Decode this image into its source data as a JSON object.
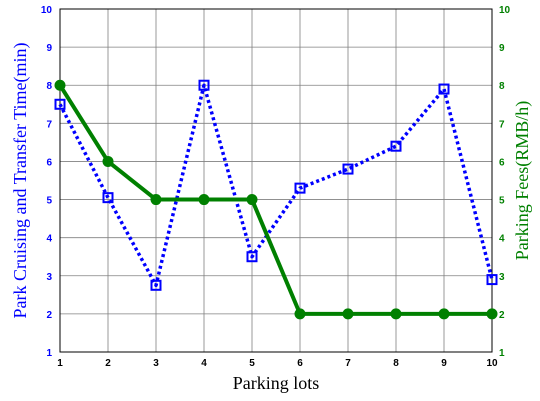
{
  "chart_data": {
    "type": "line",
    "xlabel": "Parking lots",
    "ylabel_left": "Park Cruising and Transfer Time(min)",
    "ylabel_right": "Parking Fees(RMB/h)",
    "x": [
      1,
      2,
      3,
      4,
      5,
      6,
      7,
      8,
      9,
      10
    ],
    "xlim": [
      1,
      10
    ],
    "ylim_left": [
      1,
      10
    ],
    "ylim_right": [
      1,
      10
    ],
    "grid": true,
    "series": [
      {
        "axis": "left",
        "color": "#0000ff",
        "line_style": "dotted",
        "marker": "square",
        "values": [
          7.5,
          5.05,
          2.75,
          8.0,
          3.5,
          5.3,
          5.8,
          6.4,
          7.9,
          2.9
        ]
      },
      {
        "axis": "right",
        "color": "#008000",
        "line_style": "solid",
        "marker": "circle",
        "values": [
          8,
          6,
          5,
          5,
          5,
          2,
          2,
          2,
          2,
          2
        ]
      }
    ],
    "tick_labels": {
      "x": [
        "1",
        "2",
        "3",
        "4",
        "5",
        "6",
        "7",
        "8",
        "9",
        "10"
      ],
      "left": [
        "1",
        "2",
        "3",
        "4",
        "5",
        "6",
        "7",
        "8",
        "9",
        "10"
      ],
      "right": [
        "1",
        "2",
        "3",
        "4",
        "5",
        "6",
        "7",
        "8",
        "9",
        "10"
      ]
    }
  }
}
